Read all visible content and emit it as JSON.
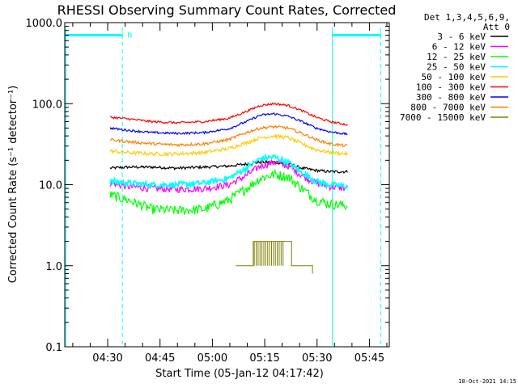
{
  "chart_data": {
    "type": "line",
    "title": "RHESSI Observing Summary Count Rates, Corrected",
    "xlabel": "Start Time (05-Jan-12 04:17:42)",
    "ylabel": "Corrected Count Rate (s⁻¹ detector⁻¹)",
    "x_unit": "minutes since 04:17:42",
    "xlim": [
      0,
      93
    ],
    "ylim": [
      0.1,
      1000
    ],
    "yscale": "log",
    "x_ticks": [
      {
        "label": "04:30",
        "value": 12.3
      },
      {
        "label": "04:45",
        "value": 27.3
      },
      {
        "label": "05:00",
        "value": 42.3
      },
      {
        "label": "05:15",
        "value": 57.3
      },
      {
        "label": "05:30",
        "value": 72.3
      },
      {
        "label": "05:45",
        "value": 87.3
      }
    ],
    "y_ticks": [
      {
        "label": "1000.0",
        "value": 1000
      },
      {
        "label": "100.0",
        "value": 100
      },
      {
        "label": "10.0",
        "value": 10
      },
      {
        "label": "1.0",
        "value": 1
      },
      {
        "label": "0.1",
        "value": 0.1
      }
    ],
    "legend": {
      "header": [
        "Det 1,3,4,5,6,9,",
        "Att 0"
      ],
      "position": "right"
    },
    "series": [
      {
        "name": "3 - 6 keV",
        "color": "#000000",
        "x": [
          13,
          18,
          25,
          32,
          40,
          47,
          52,
          56,
          60,
          64,
          68,
          72,
          76,
          81
        ],
        "values": [
          16,
          16.5,
          16.5,
          16,
          16.5,
          17,
          18,
          19,
          19,
          18,
          16,
          15,
          14.5,
          14.5
        ]
      },
      {
        "name": "6 - 12 keV",
        "color": "#ff00ff",
        "x": [
          13,
          18,
          25,
          32,
          40,
          47,
          52,
          56,
          60,
          64,
          68,
          72,
          76,
          81
        ],
        "values": [
          10.5,
          9.5,
          9,
          8.8,
          9,
          10,
          13,
          17,
          19,
          17,
          13,
          10.5,
          9.5,
          9
        ]
      },
      {
        "name": "12 - 25 keV",
        "color": "#00ff00",
        "x": [
          13,
          18,
          25,
          32,
          40,
          47,
          52,
          56,
          60,
          64,
          68,
          72,
          76,
          81
        ],
        "values": [
          7.5,
          6.5,
          5,
          4.8,
          5,
          6.5,
          9,
          12,
          13.5,
          12.5,
          9,
          6.5,
          5.8,
          5.5
        ]
      },
      {
        "name": "25 - 50 keV",
        "color": "#00ffff",
        "x": [
          13,
          18,
          25,
          32,
          40,
          47,
          52,
          56,
          60,
          64,
          68,
          72,
          76,
          81
        ],
        "values": [
          11,
          10.5,
          10,
          10,
          10.5,
          12,
          16,
          21,
          22,
          19,
          14,
          11,
          10,
          9.5
        ]
      },
      {
        "name": "50 - 100 keV",
        "color": "#ffcc00",
        "x": [
          13,
          18,
          25,
          32,
          40,
          47,
          52,
          56,
          60,
          64,
          68,
          72,
          76,
          81
        ],
        "values": [
          26,
          25,
          24,
          24,
          25,
          28,
          33,
          38,
          40,
          38,
          32,
          27,
          25,
          24
        ]
      },
      {
        "name": "100 - 300 keV",
        "color": "#ff0000",
        "x": [
          13,
          18,
          25,
          32,
          40,
          47,
          52,
          56,
          60,
          64,
          68,
          72,
          76,
          81
        ],
        "values": [
          68,
          65,
          60,
          58,
          60,
          66,
          80,
          95,
          100,
          95,
          82,
          68,
          60,
          55
        ]
      },
      {
        "name": "300 - 800 keV",
        "color": "#0000ff",
        "x": [
          13,
          18,
          25,
          32,
          40,
          47,
          52,
          56,
          60,
          64,
          68,
          72,
          76,
          81
        ],
        "values": [
          50,
          47,
          44,
          43,
          44,
          49,
          60,
          72,
          75,
          70,
          60,
          50,
          45,
          42
        ]
      },
      {
        "name": "800 - 7000 keV",
        "color": "#ff8000",
        "x": [
          13,
          18,
          25,
          32,
          40,
          47,
          52,
          56,
          60,
          64,
          68,
          72,
          76,
          81
        ],
        "values": [
          36,
          34,
          32,
          31,
          32,
          36,
          44,
          50,
          52,
          50,
          43,
          36,
          32,
          30
        ]
      },
      {
        "name": "7000 - 15000 keV",
        "color": "#808000",
        "x": [
          49,
          53,
          54,
          63,
          65,
          70,
          71
        ],
        "values": [
          1,
          1,
          2,
          2,
          1,
          1,
          0.8
        ]
      }
    ],
    "annotations": [
      {
        "type": "vertical-dashed",
        "x": 16.5,
        "color": "#00ffff"
      },
      {
        "type": "vertical-dashed",
        "x": 90.5,
        "color": "#00ffff"
      },
      {
        "type": "vertical-solid",
        "x": 0.3,
        "color": "#00ffff"
      },
      {
        "type": "vertical-solid",
        "x": 76.7,
        "color": "#00ffff"
      },
      {
        "type": "horizontal-bar",
        "x": [
          0.3,
          16.5
        ],
        "y": 700,
        "color": "#00ffff"
      },
      {
        "type": "horizontal-bar",
        "x": [
          76.7,
          90.5
        ],
        "y": 700,
        "color": "#00ffff"
      },
      {
        "type": "label",
        "text": "N",
        "x": 18,
        "y": 700,
        "color": "#00ffff"
      }
    ],
    "footer_text": "18-Oct-2021 14:15"
  }
}
